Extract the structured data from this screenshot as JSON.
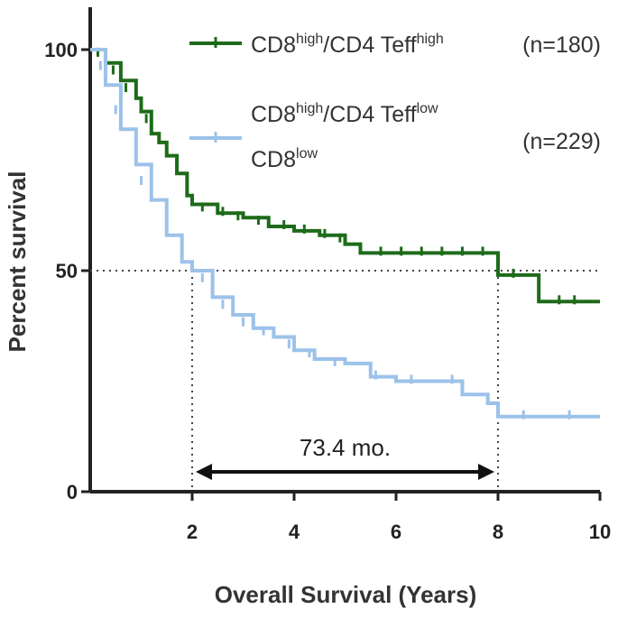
{
  "chart_data": {
    "type": "line",
    "subtype": "kaplan-meier",
    "xlabel": "Overall Survival (Years)",
    "ylabel": "Percent survival",
    "xlim": [
      0,
      10
    ],
    "ylim": [
      0,
      100
    ],
    "xticks": [
      2,
      4,
      6,
      8,
      10
    ],
    "yticks": [
      0,
      50,
      100
    ],
    "grid": false,
    "legend_position": "top-right",
    "reference_line_y": 50,
    "reference_x": [
      2,
      8
    ],
    "annotation": {
      "text": "73.4 mo.",
      "x_start": 2,
      "x_end": 8,
      "y": 4.5
    },
    "legend": [
      {
        "series": 0,
        "parts": [
          {
            "t": "CD8"
          },
          {
            "t": "high",
            "sup": true
          },
          {
            "t": "/CD4 Teff"
          },
          {
            "t": "high",
            "sup": true
          }
        ],
        "parts2": [],
        "n_label": "(n=180)"
      },
      {
        "series": 1,
        "parts": [
          {
            "t": "CD8"
          },
          {
            "t": "high",
            "sup": true
          },
          {
            "t": "/CD4 Teff"
          },
          {
            "t": "low",
            "sup": true
          }
        ],
        "parts2": [
          {
            "t": "CD8"
          },
          {
            "t": "low",
            "sup": true
          }
        ],
        "n_label": "(n=229)"
      }
    ],
    "series": [
      {
        "name": "CD8high/CD4 Teffhigh",
        "n": 180,
        "color": "#1e6b1a",
        "x": [
          0,
          0.3,
          0.6,
          0.9,
          1.0,
          1.2,
          1.35,
          1.5,
          1.7,
          1.9,
          2.0,
          2.5,
          3.0,
          3.5,
          4.0,
          4.5,
          5.0,
          5.3,
          6.0,
          7.0,
          7.9,
          8.0,
          8.7,
          8.8,
          10.0
        ],
        "y": [
          100,
          97,
          93,
          89,
          86,
          81,
          79,
          76,
          72,
          67,
          65,
          63,
          62,
          60,
          59,
          58,
          56,
          54,
          54,
          54,
          54,
          49,
          49,
          43,
          43
        ],
        "censor_x": [
          0.15,
          0.45,
          0.7,
          1.1,
          2.2,
          2.6,
          2.9,
          3.3,
          3.8,
          4.2,
          4.6,
          4.9,
          5.7,
          6.1,
          6.5,
          6.9,
          7.3,
          7.7,
          8.3,
          9.2,
          9.5
        ],
        "censor_y": [
          99,
          95,
          91,
          84,
          64,
          63,
          62,
          61,
          60,
          59,
          58,
          57,
          54,
          54,
          54,
          54,
          54,
          54,
          49,
          43,
          43
        ]
      },
      {
        "name": "CD8high/CD4 Tefflow CD8low",
        "n": 229,
        "color": "#9cc2ea",
        "x": [
          0,
          0.3,
          0.6,
          0.9,
          1.2,
          1.5,
          1.8,
          2.0,
          2.4,
          2.8,
          3.2,
          3.6,
          4.0,
          4.4,
          5.0,
          5.5,
          6.0,
          6.5,
          7.0,
          7.3,
          7.8,
          8.0,
          10.0
        ],
        "y": [
          100,
          92,
          82,
          74,
          66,
          58,
          52,
          50,
          44,
          40,
          37,
          35,
          32,
          30,
          29,
          26,
          25,
          25,
          25,
          22,
          20,
          17,
          17
        ],
        "censor_x": [
          0.2,
          0.5,
          1.0,
          2.2,
          2.6,
          3.0,
          3.4,
          3.9,
          4.3,
          4.8,
          5.6,
          6.3,
          7.1,
          8.5,
          9.4
        ],
        "censor_y": [
          96,
          86,
          70,
          48,
          42,
          38,
          36,
          33,
          31,
          29,
          26,
          25,
          25,
          17,
          17
        ]
      }
    ]
  }
}
